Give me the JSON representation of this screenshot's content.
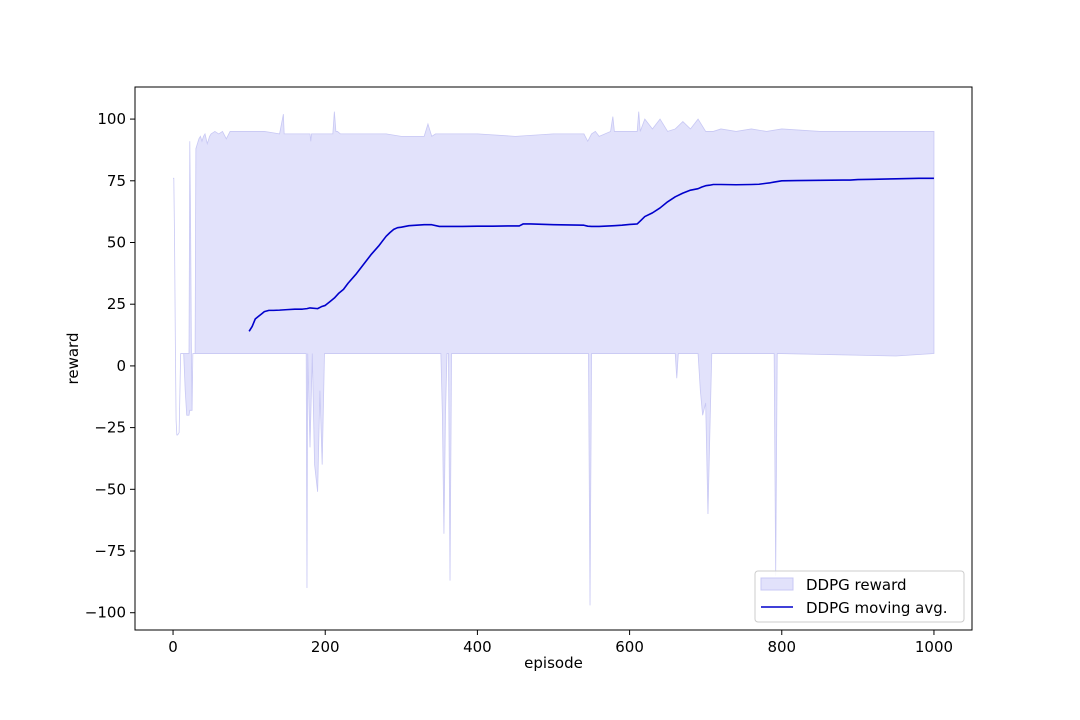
{
  "chart_data": {
    "type": "line",
    "title": "",
    "xlabel": "episode",
    "ylabel": "reward",
    "xlim": [
      -50,
      1050
    ],
    "ylim": [
      -107,
      113
    ],
    "xticks": [
      0,
      200,
      400,
      600,
      800,
      1000
    ],
    "xtick_labels": [
      "0",
      "200",
      "400",
      "600",
      "800",
      "1000"
    ],
    "yticks": [
      -100,
      -75,
      -50,
      -25,
      0,
      25,
      50,
      75,
      100
    ],
    "ytick_labels": [
      "−100",
      "−75",
      "−50",
      "−25",
      "0",
      "25",
      "50",
      "75",
      "100"
    ],
    "grid": false,
    "legend_position": "lower-right",
    "series": [
      {
        "name": "DDPG reward",
        "kind": "band",
        "color": "#e2e2fb",
        "edge_color": "#c8c8f4",
        "upper": {
          "x": [
            0,
            1,
            2,
            3,
            4,
            5,
            6,
            8,
            10,
            11,
            12,
            14,
            16,
            18,
            20,
            21,
            22,
            23,
            24,
            25,
            26,
            27,
            28,
            29,
            30,
            32,
            34,
            36,
            38,
            40,
            42,
            45,
            48,
            50,
            55,
            60,
            65,
            70,
            75,
            80,
            85,
            90,
            95,
            100,
            110,
            120,
            130,
            140,
            145,
            146,
            147,
            150,
            170,
            180,
            181,
            182,
            200,
            210,
            212,
            214,
            216,
            220,
            250,
            280,
            300,
            320,
            330,
            335,
            340,
            345,
            350,
            400,
            450,
            500,
            540,
            545,
            550,
            555,
            560,
            575,
            578,
            580,
            585,
            600,
            610,
            612,
            614,
            620,
            630,
            640,
            650,
            660,
            670,
            680,
            690,
            700,
            710,
            720,
            740,
            760,
            780,
            800,
            850,
            900,
            950,
            1000
          ],
          "y": [
            76,
            76,
            50,
            10,
            -22,
            -28,
            -28,
            -27,
            5,
            5,
            5,
            5,
            5,
            5,
            5,
            5,
            91,
            60,
            10,
            -18,
            5,
            5,
            5,
            5,
            88,
            90,
            92,
            93,
            91,
            93,
            94,
            90,
            93,
            94,
            95,
            94,
            95,
            92,
            95,
            95,
            95,
            95,
            95,
            95,
            95,
            95,
            94.5,
            94,
            102,
            94,
            94,
            94,
            94,
            94,
            91,
            94,
            94,
            94,
            103,
            95,
            95,
            94,
            94,
            94,
            93,
            93,
            93,
            98,
            93,
            94,
            94,
            94,
            93,
            94,
            94,
            91,
            94,
            95,
            93,
            95,
            101,
            95,
            95,
            95,
            95,
            103,
            95,
            100,
            96,
            100,
            95,
            96,
            99,
            96,
            100,
            95,
            95,
            96,
            95,
            96,
            95,
            96,
            95,
            95,
            95,
            95
          ]
        },
        "lower": {
          "x": [
            0,
            1,
            2,
            3,
            4,
            5,
            6,
            8,
            10,
            11,
            12,
            14,
            16,
            18,
            20,
            21,
            22,
            23,
            24,
            25,
            26,
            27,
            28,
            29,
            30,
            40,
            100,
            150,
            175,
            176,
            177,
            180,
            183,
            186,
            190,
            193,
            196,
            199,
            200,
            250,
            300,
            352,
            354,
            356,
            358,
            360,
            362,
            364,
            366,
            368,
            370,
            400,
            500,
            546,
            548,
            550,
            552,
            554,
            600,
            660,
            662,
            664,
            666,
            690,
            693,
            696,
            700,
            703,
            706,
            708,
            710,
            790,
            792,
            794,
            796,
            798,
            800,
            950,
            1000
          ],
          "y": [
            76,
            76,
            50,
            10,
            -22,
            -28,
            -28,
            -27,
            5,
            5,
            5,
            5,
            -10,
            -20,
            -20,
            -20,
            -18,
            -18,
            -18,
            -18,
            5,
            5,
            5,
            5,
            5,
            5,
            5,
            5,
            5,
            -90,
            5,
            -33,
            5,
            -40,
            -51,
            -10,
            -40,
            5,
            5,
            5,
            5,
            5,
            -20,
            -68,
            -20,
            5,
            5,
            -87,
            5,
            5,
            5,
            5,
            5,
            5,
            -97,
            5,
            5,
            5,
            5,
            5,
            -5,
            5,
            5,
            5,
            -10,
            -20,
            -15,
            -60,
            -20,
            5,
            5,
            5,
            -85,
            5,
            5,
            5,
            5,
            4,
            5
          ]
        }
      },
      {
        "name": "DDPG moving avg.",
        "kind": "line",
        "color": "#0000cc",
        "x": [
          100,
          104,
          108,
          112,
          116,
          120,
          126,
          132,
          140,
          150,
          160,
          170,
          176,
          180,
          190,
          195,
          200,
          206,
          212,
          218,
          224,
          230,
          240,
          250,
          260,
          270,
          280,
          285,
          290,
          295,
          300,
          305,
          310,
          320,
          330,
          340,
          350,
          355,
          360,
          370,
          380,
          400,
          420,
          440,
          455,
          460,
          470,
          480,
          500,
          520,
          540,
          545,
          550,
          560,
          580,
          590,
          600,
          610,
          615,
          620,
          630,
          640,
          650,
          660,
          670,
          680,
          685,
          690,
          695,
          700,
          705,
          710,
          720,
          740,
          760,
          770,
          775,
          780,
          785,
          790,
          800,
          820,
          850,
          880,
          890,
          900,
          920,
          950,
          980,
          1000
        ],
        "y": [
          14,
          16,
          19,
          20,
          21,
          22,
          22.5,
          22.5,
          22.6,
          22.8,
          23,
          23,
          23.2,
          23.5,
          23.2,
          24,
          24.5,
          26,
          27.5,
          29.5,
          31,
          33.5,
          37,
          41,
          45,
          48.5,
          52.5,
          54,
          55.3,
          56,
          56.2,
          56.5,
          56.8,
          57,
          57.2,
          57.2,
          56.5,
          56.5,
          56.5,
          56.5,
          56.5,
          56.6,
          56.6,
          56.7,
          56.7,
          57.5,
          57.5,
          57.4,
          57.2,
          57.1,
          57,
          56.6,
          56.5,
          56.5,
          56.8,
          57,
          57.3,
          57.5,
          59,
          60.5,
          62,
          64,
          66.5,
          68.5,
          70,
          71.2,
          71.5,
          71.8,
          72.5,
          73,
          73.2,
          73.5,
          73.5,
          73.4,
          73.5,
          73.6,
          73.8,
          74,
          74.2,
          74.5,
          75,
          75.1,
          75.2,
          75.3,
          75.3,
          75.5,
          75.6,
          75.8,
          76,
          76
        ]
      }
    ]
  }
}
